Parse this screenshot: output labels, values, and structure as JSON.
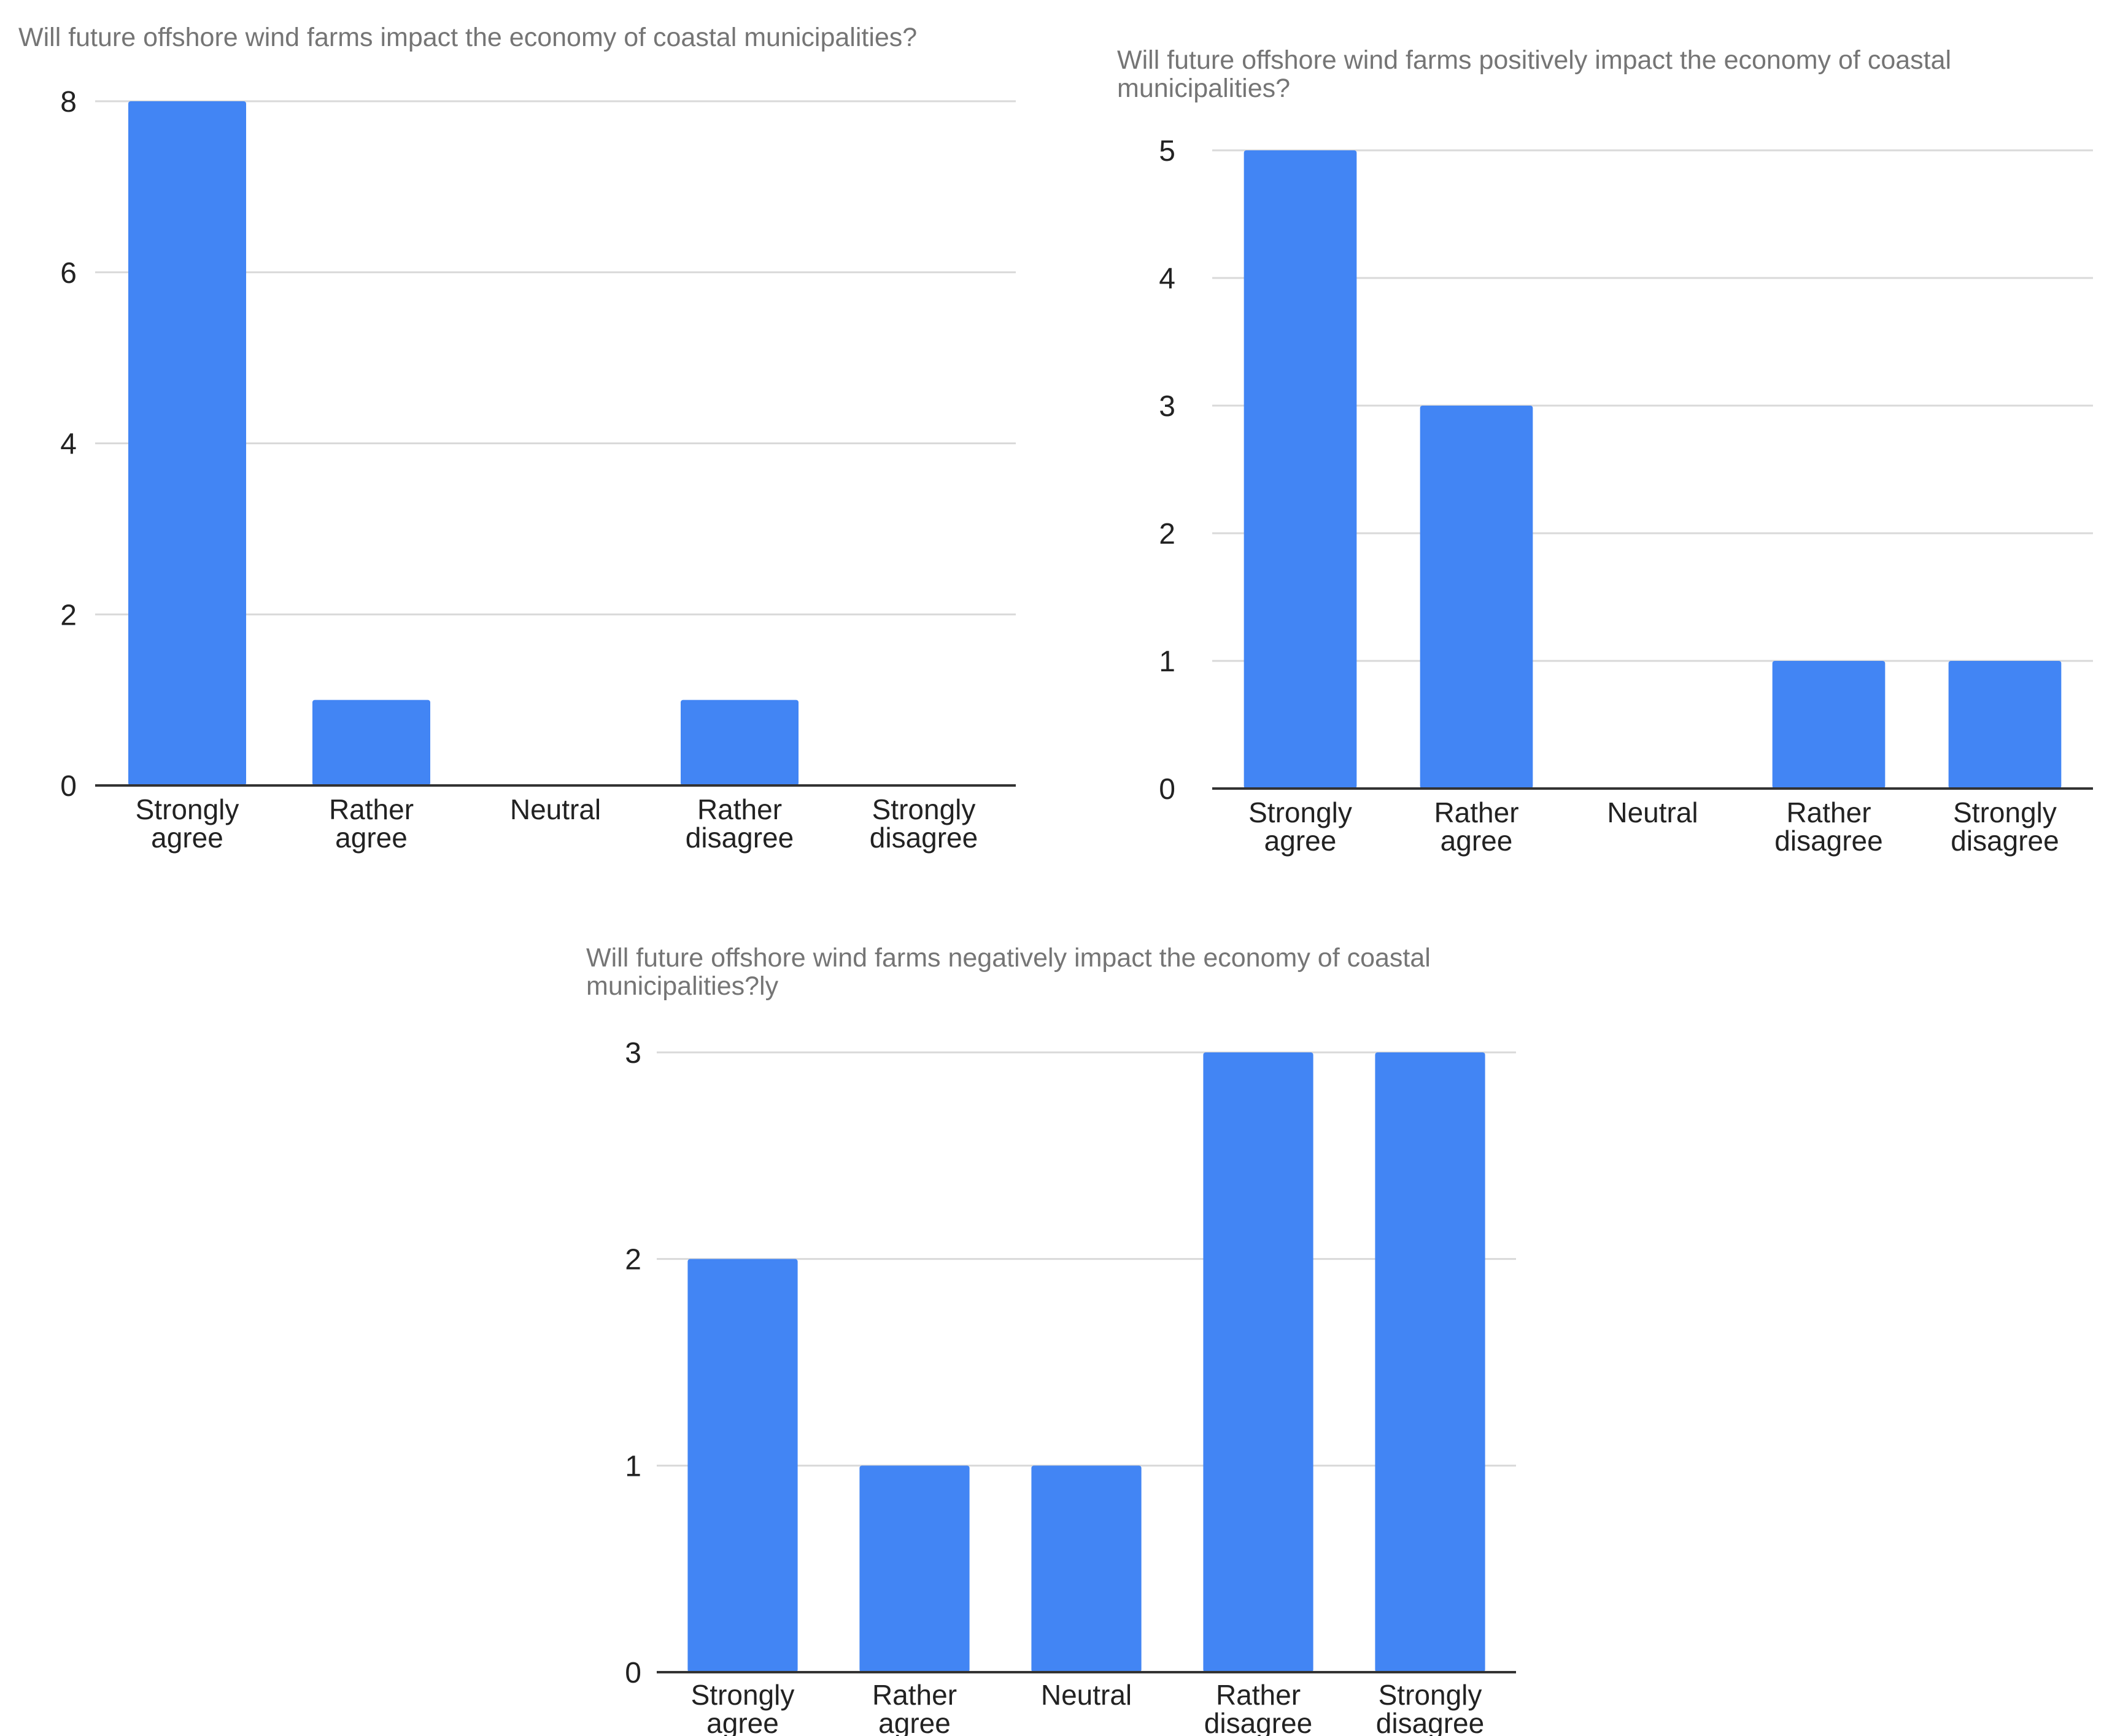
{
  "colors": {
    "bar": "#4285f4",
    "grid": "#d9d9d9",
    "axis": "#333333",
    "title": "#757575",
    "text": "#222222"
  },
  "chart_data": [
    {
      "type": "bar",
      "title_lines": [
        "Will future offshore wind farms impact the economy of coastal municipalities?"
      ],
      "categories": [
        [
          "Strongly",
          "agree"
        ],
        [
          "Rather",
          "agree"
        ],
        [
          "Neutral"
        ],
        [
          "Rather",
          "disagree"
        ],
        [
          "Strongly",
          "disagree"
        ]
      ],
      "values": [
        8,
        1,
        0,
        1,
        0
      ],
      "ylim": [
        0,
        8
      ],
      "yticks": [
        0,
        2,
        4,
        6,
        8
      ],
      "xlabel": "",
      "ylabel": "",
      "grid": true,
      "legend": "none"
    },
    {
      "type": "bar",
      "title_lines": [
        "Will future offshore wind farms positively impact the economy of coastal",
        "municipalities?"
      ],
      "categories": [
        [
          "Strongly",
          "agree"
        ],
        [
          "Rather",
          "agree"
        ],
        [
          "Neutral"
        ],
        [
          "Rather",
          "disagree"
        ],
        [
          "Strongly",
          "disagree"
        ]
      ],
      "values": [
        5,
        3,
        0,
        1,
        1
      ],
      "ylim": [
        0,
        5
      ],
      "yticks": [
        0,
        1,
        2,
        3,
        4,
        5
      ],
      "xlabel": "",
      "ylabel": "",
      "grid": true,
      "legend": "none"
    },
    {
      "type": "bar",
      "title_lines": [
        "Will future offshore wind farms negatively impact the economy of coastal",
        "municipalities?ly"
      ],
      "categories": [
        [
          "Strongly",
          "agree"
        ],
        [
          "Rather",
          "agree"
        ],
        [
          "Neutral"
        ],
        [
          "Rather",
          "disagree"
        ],
        [
          "Strongly",
          "disagree"
        ]
      ],
      "values": [
        2,
        1,
        1,
        3,
        3
      ],
      "ylim": [
        0,
        3
      ],
      "yticks": [
        0,
        1,
        2,
        3
      ],
      "xlabel": "",
      "ylabel": "",
      "grid": true,
      "legend": "none"
    }
  ]
}
